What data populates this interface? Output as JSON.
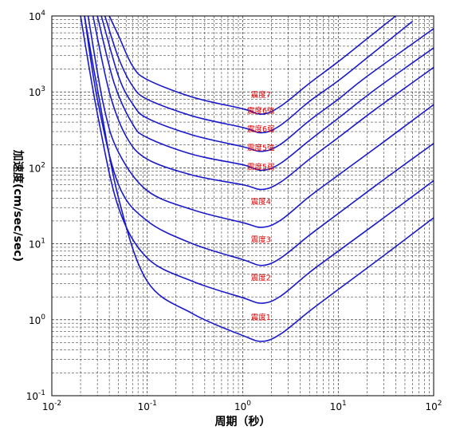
{
  "chart_data": {
    "type": "line",
    "title": "",
    "xlabel": "周期（秒）",
    "ylabel": "加速度(cm/sec/sec)",
    "xscale": "log",
    "yscale": "log",
    "xlim": [
      0.01,
      100
    ],
    "ylim": [
      0.1,
      10000
    ],
    "grid": true,
    "x_ticks": [
      {
        "base": "10",
        "exp": "-2",
        "value": 0.01
      },
      {
        "base": "10",
        "exp": "-1",
        "value": 0.1
      },
      {
        "base": "10",
        "exp": "0",
        "value": 1
      },
      {
        "base": "10",
        "exp": "1",
        "value": 10
      },
      {
        "base": "10",
        "exp": "2",
        "value": 100
      }
    ],
    "y_ticks": [
      {
        "base": "10",
        "exp": "-1",
        "value": 0.1
      },
      {
        "base": "10",
        "exp": "0",
        "value": 1
      },
      {
        "base": "10",
        "exp": "1",
        "value": 10
      },
      {
        "base": "10",
        "exp": "2",
        "value": 100
      },
      {
        "base": "10",
        "exp": "3",
        "value": 1000
      },
      {
        "base": "10",
        "exp": "4",
        "value": 10000
      }
    ],
    "series": [
      {
        "name": "震度1",
        "x": [
          0.022,
          0.03,
          0.05,
          0.1,
          0.3,
          1.0,
          1.6,
          2.5,
          5,
          10,
          30,
          100
        ],
        "y": [
          10000,
          1100,
          40,
          3.2,
          1.2,
          0.62,
          0.52,
          0.65,
          1.3,
          2.5,
          7,
          22
        ]
      },
      {
        "name": "震度2",
        "x": [
          0.02,
          0.03,
          0.05,
          0.1,
          0.3,
          1.0,
          1.6,
          2.5,
          5,
          10,
          30,
          100
        ],
        "y": [
          10000,
          520,
          30,
          6.5,
          3.2,
          1.95,
          1.65,
          2.05,
          4.2,
          8,
          22,
          68
        ]
      },
      {
        "name": "震度3",
        "x": [
          0.022,
          0.03,
          0.05,
          0.1,
          0.3,
          1.0,
          1.6,
          2.5,
          5,
          10,
          30,
          100
        ],
        "y": [
          10000,
          800,
          60,
          20,
          10,
          6.2,
          5.2,
          6.5,
          13,
          25,
          70,
          210
        ]
      },
      {
        "name": "震度4",
        "x": [
          0.024,
          0.035,
          0.05,
          0.1,
          0.3,
          1.0,
          1.6,
          2.5,
          5,
          10,
          30,
          100
        ],
        "y": [
          10000,
          650,
          160,
          50,
          28,
          19,
          16.5,
          20.5,
          42,
          80,
          220,
          680
        ]
      },
      {
        "name": "震度5弱",
        "x": [
          0.027,
          0.04,
          0.06,
          0.1,
          0.3,
          1.0,
          1.6,
          2.5,
          5,
          10,
          25,
          100
        ],
        "y": [
          10000,
          1000,
          260,
          130,
          80,
          60,
          52,
          65,
          130,
          250,
          600,
          2100
        ]
      },
      {
        "name": "震度5強",
        "x": [
          0.03,
          0.045,
          0.07,
          0.1,
          0.3,
          1.0,
          1.6,
          2.5,
          5,
          10,
          25,
          100
        ],
        "y": [
          10000,
          1300,
          380,
          250,
          150,
          110,
          93,
          115,
          230,
          450,
          1100,
          3800
        ]
      },
      {
        "name": "震度6弱",
        "x": [
          0.033,
          0.05,
          0.07,
          0.1,
          0.3,
          1.0,
          1.6,
          2.5,
          5,
          10,
          20,
          100
        ],
        "y": [
          10000,
          1600,
          700,
          450,
          270,
          190,
          165,
          205,
          420,
          800,
          1600,
          6800
        ]
      },
      {
        "name": "震度6強",
        "x": [
          0.036,
          0.05,
          0.07,
          0.1,
          0.3,
          1.0,
          1.6,
          2.5,
          5,
          10,
          20,
          60
        ],
        "y": [
          10000,
          2800,
          1200,
          800,
          480,
          340,
          290,
          365,
          750,
          1400,
          2800,
          8500
        ]
      },
      {
        "name": "震度7",
        "x": [
          0.04,
          0.05,
          0.07,
          0.1,
          0.3,
          1.0,
          1.6,
          2.5,
          5,
          10,
          20,
          40
        ],
        "y": [
          10000,
          5500,
          2200,
          1450,
          850,
          600,
          510,
          650,
          1300,
          2500,
          5000,
          10000
        ]
      }
    ],
    "annotations": [
      {
        "text": "震度7",
        "x": 1.55,
        "y": 850
      },
      {
        "text": "震度6強",
        "x": 1.55,
        "y": 520
      },
      {
        "text": "震度6弱",
        "x": 1.55,
        "y": 300
      },
      {
        "text": "震度5強",
        "x": 1.55,
        "y": 170
      },
      {
        "text": "震度5弱",
        "x": 1.55,
        "y": 95
      },
      {
        "text": "震度4",
        "x": 1.55,
        "y": 33
      },
      {
        "text": "震度3",
        "x": 1.55,
        "y": 10.5
      },
      {
        "text": "震度2",
        "x": 1.55,
        "y": 3.3
      },
      {
        "text": "震度1",
        "x": 1.55,
        "y": 1.0
      }
    ],
    "colors": {
      "curve": "#1a1acc",
      "label": "#e00000",
      "grid": "#000000"
    }
  }
}
